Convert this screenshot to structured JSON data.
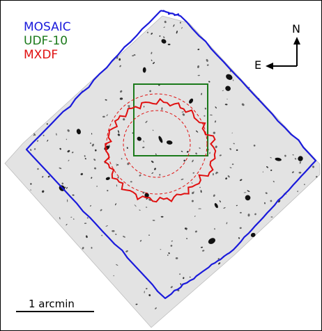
{
  "legend": [
    {
      "label": "MOSAIC",
      "color": "#1a1adb"
    },
    {
      "label": "UDF-10",
      "color": "#1b7a1b"
    },
    {
      "label": "MXDF",
      "color": "#e01010"
    }
  ],
  "compass": {
    "north": "N",
    "east": "E"
  },
  "scale_bar": {
    "label": "1 arcmin"
  },
  "colors": {
    "background": "#ffffff",
    "field": "#e3e3e3",
    "mosaic": "#1a1adb",
    "udf10": "#1b7a1b",
    "mxdf": "#e01010"
  }
}
